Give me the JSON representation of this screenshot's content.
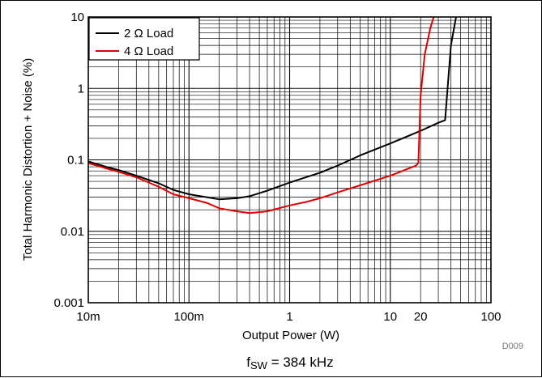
{
  "chart_data": {
    "type": "line",
    "title": "",
    "xlabel": "Output Power (W)",
    "ylabel": "Total Harmonic Distortion + Noise (%)",
    "x_scale": "log",
    "y_scale": "log",
    "xlim": [
      0.01,
      100
    ],
    "ylim": [
      0.001,
      10
    ],
    "grid": true,
    "legend_position": "top-left",
    "x_ticks": [
      {
        "value": 0.01,
        "label": "10m"
      },
      {
        "value": 0.1,
        "label": "100m"
      },
      {
        "value": 1,
        "label": "1"
      },
      {
        "value": 10,
        "label": "10"
      },
      {
        "value": 20,
        "label": "20"
      },
      {
        "value": 100,
        "label": "100"
      }
    ],
    "y_ticks": [
      {
        "value": 0.001,
        "label": "0.001"
      },
      {
        "value": 0.01,
        "label": "0.01"
      },
      {
        "value": 0.1,
        "label": "0.1"
      },
      {
        "value": 1,
        "label": "1"
      },
      {
        "value": 10,
        "label": "10"
      }
    ],
    "series": [
      {
        "name": "2 Ω Load",
        "color": "#000000",
        "x": [
          0.01,
          0.015,
          0.02,
          0.03,
          0.05,
          0.07,
          0.1,
          0.15,
          0.2,
          0.3,
          0.4,
          0.6,
          1,
          2,
          3,
          5,
          10,
          20,
          30,
          35,
          40,
          45
        ],
        "y": [
          0.095,
          0.08,
          0.072,
          0.06,
          0.047,
          0.038,
          0.033,
          0.03,
          0.028,
          0.029,
          0.031,
          0.037,
          0.048,
          0.066,
          0.083,
          0.115,
          0.17,
          0.255,
          0.33,
          0.36,
          4.0,
          10
        ]
      },
      {
        "name": "4 Ω Load",
        "color": "#e00000",
        "x": [
          0.01,
          0.015,
          0.02,
          0.03,
          0.05,
          0.07,
          0.1,
          0.15,
          0.2,
          0.3,
          0.4,
          0.6,
          1,
          1.5,
          2,
          3,
          5,
          10,
          18,
          19,
          20,
          22,
          25,
          27
        ],
        "y": [
          0.09,
          0.076,
          0.068,
          0.057,
          0.042,
          0.033,
          0.029,
          0.025,
          0.021,
          0.019,
          0.018,
          0.019,
          0.023,
          0.026,
          0.029,
          0.035,
          0.044,
          0.06,
          0.083,
          0.09,
          0.8,
          3.0,
          7.0,
          10
        ]
      }
    ],
    "footer_id": "D009",
    "caption": {
      "prefix": "f",
      "subscript": "SW",
      "suffix": " = 384 kHz"
    }
  }
}
